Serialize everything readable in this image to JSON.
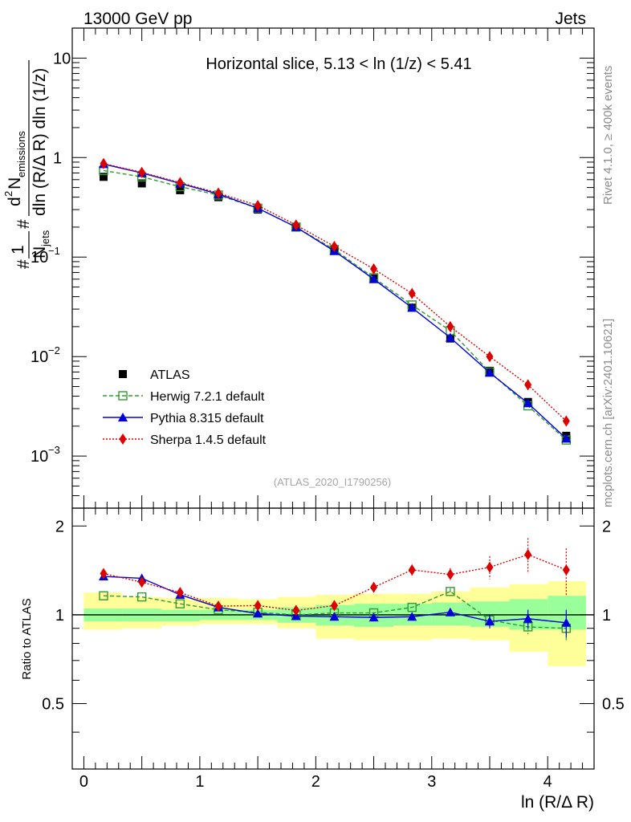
{
  "header": {
    "left": "13000 GeV pp",
    "right": "Jets"
  },
  "side": {
    "rivet": "Rivet 4.1.0, ≥ 400k events",
    "mcplots": "mcplots.cern.ch [arXiv:2401.10621]"
  },
  "chart_data": [
    {
      "type": "line",
      "panel": "main",
      "title": "Horizontal slice, 5.13 < ln (1/z) < 5.41",
      "watermark": "(ATLAS_2020_I1790256)",
      "ylabel_parts": {
        "frac_num": "1",
        "frac_den": "N",
        "frac_den_sub": "jets",
        "hash1": "#",
        "hash2": "#",
        "d": "d",
        "d_sup": "2",
        "n": "N",
        "n_sub": "emissions",
        "denominator": "dln (R/Δ R) dln (1/z)"
      },
      "yscale": "log",
      "ylim": [
        0.0003,
        20
      ],
      "xlim": [
        -0.1,
        4.4
      ],
      "ytick_labels": [
        {
          "value": 0.001,
          "base": "10",
          "exp": "−3"
        },
        {
          "value": 0.01,
          "base": "10",
          "exp": "−2"
        },
        {
          "value": 0.1,
          "base": "10",
          "exp": "−1"
        },
        {
          "value": 1,
          "base": "1",
          "exp": ""
        },
        {
          "value": 10,
          "base": "10",
          "exp": ""
        }
      ],
      "x": [
        0.17,
        0.5,
        0.83,
        1.16,
        1.5,
        1.83,
        2.16,
        2.5,
        2.83,
        3.16,
        3.5,
        3.83,
        4.16
      ],
      "bin_edges": [
        0.0,
        0.33,
        0.67,
        1.0,
        1.33,
        1.67,
        2.0,
        2.33,
        2.67,
        3.0,
        3.33,
        3.67,
        4.0,
        4.33
      ],
      "series": [
        {
          "name": "ATLAS",
          "label": "ATLAS",
          "color": "#000000",
          "marker": "square",
          "values": [
            0.64,
            0.55,
            0.47,
            0.4,
            0.3,
            0.2,
            0.117,
            0.061,
            0.031,
            0.0152,
            0.0072,
            0.0035,
            0.0016
          ]
        },
        {
          "name": "Herwig",
          "label": "Herwig 7.2.1 default",
          "color": "#339933",
          "marker": "open-square",
          "dash": "5,3",
          "values": [
            0.74,
            0.64,
            0.51,
            0.42,
            0.31,
            0.2,
            0.119,
            0.062,
            0.033,
            0.0182,
            0.007,
            0.0032,
            0.00145
          ]
        },
        {
          "name": "Pythia",
          "label": "Pythia 8.315 default",
          "color": "#0000dd",
          "marker": "triangle",
          "dash": "",
          "values": [
            0.86,
            0.7,
            0.55,
            0.43,
            0.31,
            0.2,
            0.115,
            0.06,
            0.031,
            0.0155,
            0.0069,
            0.0034,
            0.0015
          ]
        },
        {
          "name": "Sherpa",
          "label": "Sherpa 1.4.5 default",
          "color": "#dd0000",
          "marker": "diamond",
          "dash": "2,2",
          "values": [
            0.87,
            0.71,
            0.56,
            0.44,
            0.33,
            0.21,
            0.128,
            0.076,
            0.043,
            0.02,
            0.01,
            0.0052,
            0.00225
          ]
        }
      ],
      "legend_position": "lower-left"
    },
    {
      "type": "line",
      "panel": "ratio",
      "ylabel": "Ratio to ATLAS",
      "xlabel": "ln (R/Δ R)",
      "ylim": [
        0.3,
        2.3
      ],
      "xlim": [
        -0.1,
        4.4
      ],
      "ytick_labels": [
        "0.5",
        "1",
        "2"
      ],
      "yticks": [
        0.5,
        1,
        2
      ],
      "xtick_labels": [
        "0",
        "1",
        "2",
        "3",
        "4"
      ],
      "xticks": [
        0,
        1,
        2,
        3,
        4
      ],
      "band_green": [
        [
          0.95,
          1.05
        ],
        [
          0.95,
          1.05
        ],
        [
          0.95,
          1.04
        ],
        [
          0.96,
          1.04
        ],
        [
          0.96,
          1.04
        ],
        [
          0.94,
          1.06
        ],
        [
          0.92,
          1.08
        ],
        [
          0.91,
          1.09
        ],
        [
          0.92,
          1.09
        ],
        [
          0.92,
          1.1
        ],
        [
          0.91,
          1.11
        ],
        [
          0.89,
          1.13
        ],
        [
          0.89,
          1.16
        ]
      ],
      "band_yellow": [
        [
          0.89,
          1.19
        ],
        [
          0.9,
          1.15
        ],
        [
          0.92,
          1.14
        ],
        [
          0.93,
          1.14
        ],
        [
          0.93,
          1.13
        ],
        [
          0.9,
          1.15
        ],
        [
          0.83,
          1.17
        ],
        [
          0.82,
          1.18
        ],
        [
          0.82,
          1.18
        ],
        [
          0.83,
          1.2
        ],
        [
          0.82,
          1.24
        ],
        [
          0.75,
          1.27
        ],
        [
          0.67,
          1.3
        ]
      ],
      "series": [
        {
          "name": "Herwig",
          "color": "#339933",
          "marker": "open-square",
          "dash": "5,3",
          "values": [
            1.16,
            1.15,
            1.09,
            1.04,
            1.02,
            0.999,
            1.015,
            1.015,
            1.06,
            1.2,
            0.96,
            0.91,
            0.9
          ],
          "errors": [
            0,
            0,
            0,
            0,
            0,
            0,
            0,
            0,
            0,
            0.03,
            0.03,
            0.05,
            0.08
          ]
        },
        {
          "name": "Pythia",
          "color": "#0000dd",
          "marker": "triangle",
          "dash": "",
          "values": [
            1.35,
            1.33,
            1.17,
            1.06,
            1.01,
            0.99,
            0.985,
            0.98,
            0.985,
            1.02,
            0.95,
            0.97,
            0.94
          ],
          "errors": [
            0,
            0,
            0,
            0,
            0,
            0,
            0,
            0,
            0,
            0.03,
            0.05,
            0.07,
            0.1
          ]
        },
        {
          "name": "Sherpa",
          "color": "#dd0000",
          "marker": "diamond",
          "dash": "2,2",
          "values": [
            1.38,
            1.29,
            1.19,
            1.07,
            1.075,
            1.035,
            1.075,
            1.24,
            1.42,
            1.37,
            1.45,
            1.6,
            1.42
          ],
          "errors": [
            0,
            0,
            0,
            0,
            0,
            0,
            0,
            0.03,
            0.06,
            0.07,
            0.13,
            0.22,
            0.26
          ]
        }
      ]
    }
  ]
}
